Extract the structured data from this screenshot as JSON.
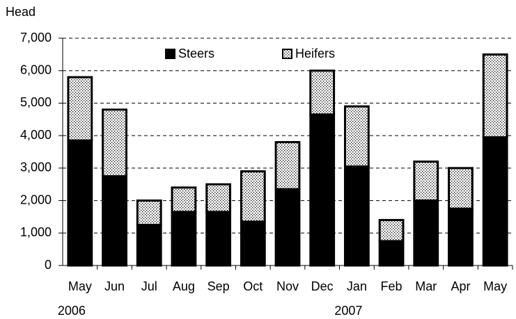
{
  "chart_data": {
    "type": "stacked_bar",
    "y_label": "Head",
    "categories": [
      "May",
      "Jun",
      "Jul",
      "Aug",
      "Sep",
      "Oct",
      "Nov",
      "Dec",
      "Jan",
      "Feb",
      "Mar",
      "Apr",
      "May"
    ],
    "year_labels": [
      "2006",
      null,
      null,
      null,
      null,
      null,
      null,
      null,
      "2007",
      null,
      null,
      null,
      null
    ],
    "series": [
      {
        "name": "Steers",
        "color": "#000000",
        "values": [
          3850,
          2750,
          1250,
          1650,
          1650,
          1350,
          2350,
          4650,
          3050,
          750,
          2000,
          1750,
          3950
        ]
      },
      {
        "name": "Heifers",
        "color": "#ffffff",
        "pattern": "dots",
        "values": [
          1950,
          2050,
          750,
          750,
          850,
          1550,
          1450,
          1350,
          1850,
          650,
          1200,
          1250,
          2550
        ]
      }
    ],
    "ylim": [
      0,
      7000
    ],
    "yticks": [
      0,
      {
        "value": 1000,
        "label": "1,000"
      },
      {
        "value": 2000,
        "label": "2,000"
      },
      {
        "value": 3000,
        "label": "3,000"
      },
      {
        "value": 4000,
        "label": "4,000"
      },
      {
        "value": 5000,
        "label": "5,000"
      },
      {
        "value": 6000,
        "label": "6,000"
      },
      {
        "value": 7000,
        "label": "7,000"
      }
    ],
    "grid": true,
    "legend": "top-center"
  }
}
